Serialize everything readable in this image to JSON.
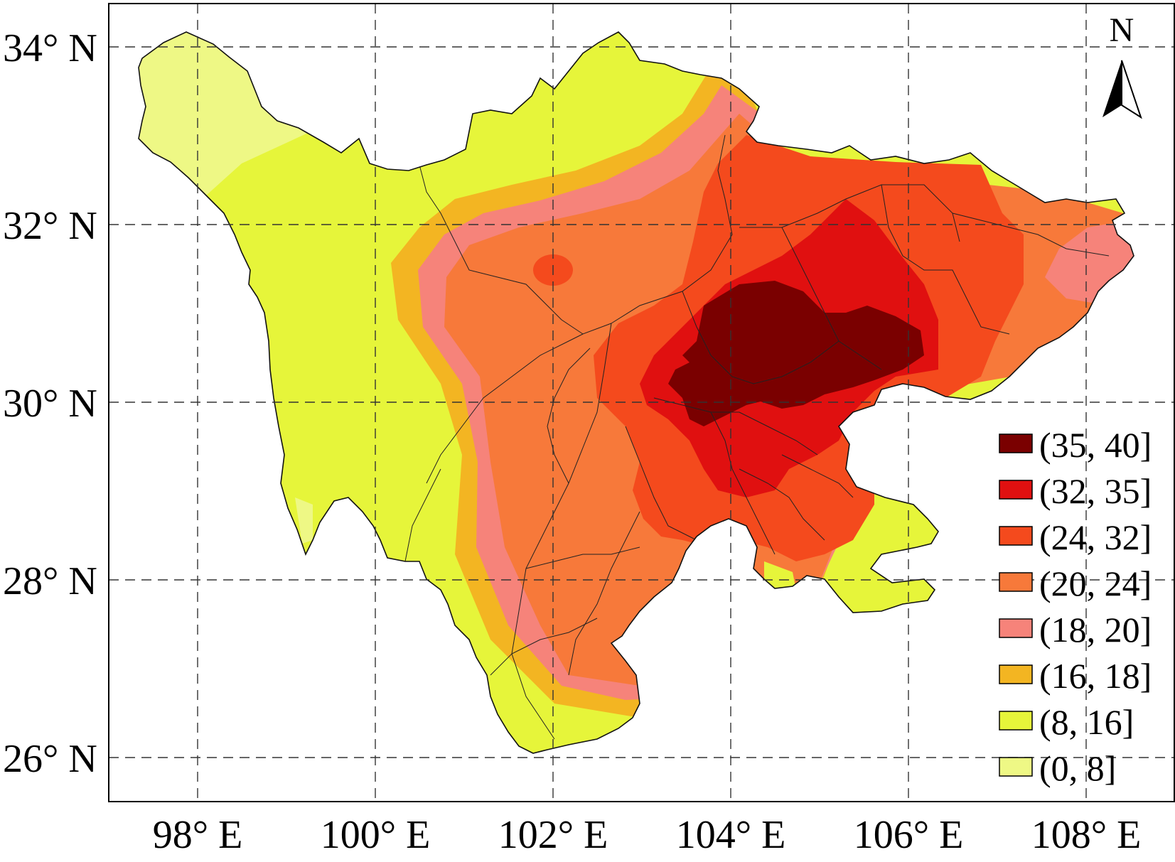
{
  "map": {
    "lat_labels": [
      "34° N",
      "32° N",
      "30° N",
      "28° N",
      "26° N"
    ],
    "lon_labels": [
      "98° E",
      "100° E",
      "102° E",
      "104° E",
      "106° E",
      "108° E"
    ],
    "north_label": "N",
    "legend": [
      {
        "label": "(35, 40]",
        "color": "#7a0000"
      },
      {
        "label": "(32, 35]",
        "color": "#e01010"
      },
      {
        "label": "(24, 32]",
        "color": "#f44a1d"
      },
      {
        "label": "(20, 24]",
        "color": "#f7793a"
      },
      {
        "label": "(18, 20]",
        "color": "#f6837a"
      },
      {
        "label": "(16, 18]",
        "color": "#f3b522"
      },
      {
        "label": "(8, 16]",
        "color": "#e6f53a"
      },
      {
        "label": "(0, 8]",
        "color": "#eef885"
      }
    ]
  }
}
